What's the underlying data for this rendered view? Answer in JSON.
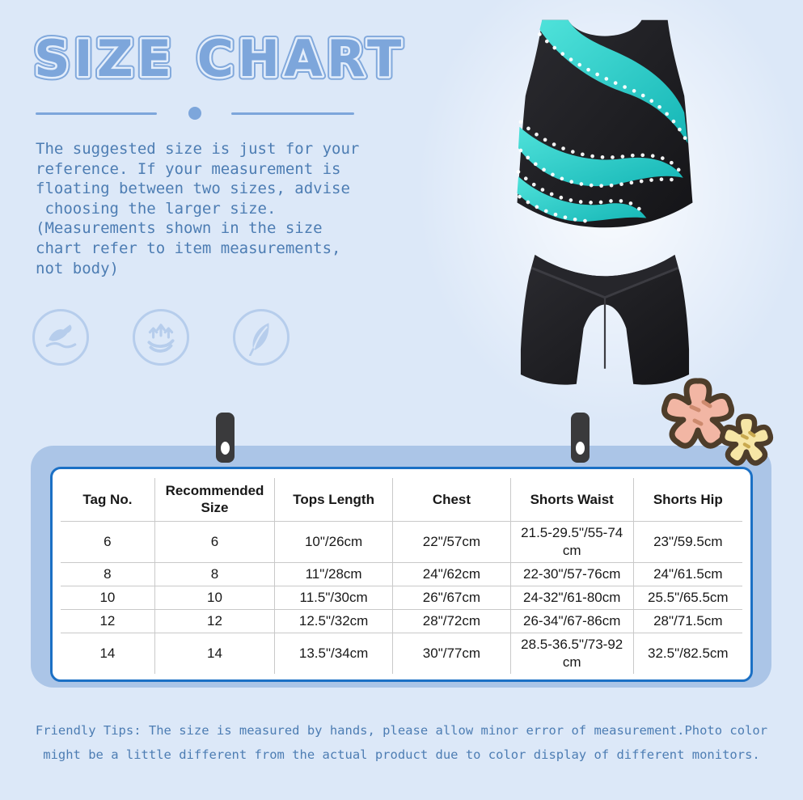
{
  "page": {
    "title": "SIZE CHART",
    "description_lines": [
      "The suggested size is just for your",
      "reference. If your measurement is",
      "floating between two sizes, advise",
      " choosing the larger size.",
      "(Measurements shown in the size",
      "chart refer to item measurements,",
      "not body)"
    ],
    "friendly_tips_lines": [
      "Friendly Tips: The size is measured by hands, please allow minor error of measurement.Photo color",
      "might be a little different from the actual product due to color display of different monitors."
    ]
  },
  "features": [
    {
      "icon": "soft-hand-icon"
    },
    {
      "icon": "stretch-breathable-icon"
    },
    {
      "icon": "feather-light-icon"
    }
  ],
  "product": {
    "description": "black and teal rhinestone gymnastics crop top with matching black shorts"
  },
  "size_table": {
    "columns": [
      "Tag No.",
      "Recommended Size",
      "Tops Length",
      "Chest",
      "Shorts Waist",
      "Shorts Hip"
    ],
    "rows": [
      [
        "6",
        "6",
        "10\"/26cm",
        "22\"/57cm",
        "21.5-29.5\"/55-74 cm",
        "23\"/59.5cm"
      ],
      [
        "8",
        "8",
        "11\"/28cm",
        "24\"/62cm",
        "22-30\"/57-76cm",
        "24\"/61.5cm"
      ],
      [
        "10",
        "10",
        "11.5\"/30cm",
        "26\"/67cm",
        "24-32\"/61-80cm",
        "25.5\"/65.5cm"
      ],
      [
        "12",
        "12",
        "12.5\"/32cm",
        "28\"/72cm",
        "26-34\"/67-86cm",
        "28\"/71.5cm"
      ],
      [
        "14",
        "14",
        "13.5\"/34cm",
        "30\"/77cm",
        "28.5-36.5\"/73-92 cm",
        "32.5\"/82.5cm"
      ]
    ]
  },
  "colors": {
    "background": "#dce8f8",
    "title_blue": "#7da6db",
    "text_blue": "#4d7db3",
    "panel_blue": "#abc5e7",
    "table_border_blue": "#1b70c5",
    "garment_teal": "#2fd4cf",
    "garment_black": "#202024",
    "flower_pink": "#f2b6a4",
    "flower_yellow": "#f6e6a6",
    "flower_outline": "#4e3d2a"
  }
}
